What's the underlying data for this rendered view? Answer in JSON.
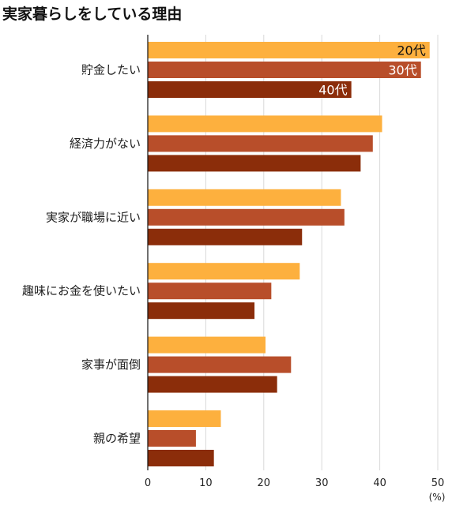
{
  "chart_data": {
    "type": "bar",
    "orientation": "horizontal",
    "title": "実家暮らしをしている理由",
    "categories": [
      "貯金したい",
      "経済力がない",
      "実家が職場に近い",
      "趣味にお金を使いたい",
      "家事が面倒",
      "親の希望"
    ],
    "series": [
      {
        "name": "20代",
        "color": "#FDB03E",
        "values": [
          48.6,
          40.4,
          33.3,
          26.2,
          20.3,
          12.6
        ],
        "label_text_color": "#111111"
      },
      {
        "name": "30代",
        "color": "#B84E2A",
        "values": [
          47.1,
          38.8,
          33.9,
          21.3,
          24.7,
          8.3
        ],
        "label_text_color": "#ffffff"
      },
      {
        "name": "40代",
        "color": "#8B2D0A",
        "values": [
          35.1,
          36.7,
          26.6,
          18.4,
          22.3,
          11.4
        ],
        "label_text_color": "#ffffff"
      }
    ],
    "x_ticks": [
      "0",
      "10",
      "20",
      "30",
      "40",
      "50"
    ],
    "xlim": [
      0,
      50
    ],
    "x_unit": "(%)",
    "grid": true,
    "legend": "labels inside the bars of the first category"
  }
}
